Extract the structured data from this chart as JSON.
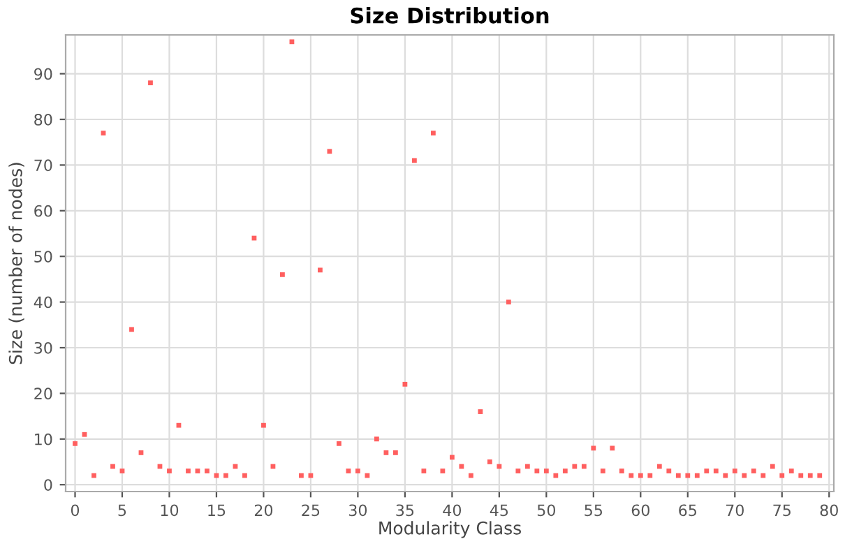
{
  "chart_data": {
    "type": "scatter",
    "title": "Size Distribution",
    "xlabel": "Modularity Class",
    "ylabel": "Size (number of nodes)",
    "x": [
      0,
      1,
      2,
      3,
      4,
      5,
      6,
      7,
      8,
      9,
      10,
      11,
      12,
      13,
      14,
      15,
      16,
      17,
      18,
      19,
      20,
      21,
      22,
      23,
      24,
      25,
      26,
      27,
      28,
      29,
      30,
      31,
      32,
      33,
      34,
      35,
      36,
      37,
      38,
      39,
      40,
      41,
      42,
      43,
      44,
      45,
      46,
      47,
      48,
      49,
      50,
      51,
      52,
      53,
      54,
      55,
      56,
      57,
      58,
      59,
      60,
      61,
      62,
      63,
      64,
      65,
      66,
      67,
      68,
      69,
      70,
      71,
      72,
      73,
      74,
      75,
      76,
      77,
      78,
      79
    ],
    "values": [
      9,
      11,
      2,
      77,
      4,
      3,
      34,
      7,
      88,
      4,
      3,
      13,
      3,
      3,
      3,
      2,
      2,
      4,
      2,
      54,
      13,
      4,
      46,
      97,
      2,
      2,
      47,
      73,
      9,
      3,
      3,
      2,
      10,
      7,
      7,
      22,
      71,
      3,
      77,
      3,
      6,
      4,
      2,
      16,
      5,
      4,
      40,
      3,
      4,
      3,
      3,
      2,
      3,
      4,
      4,
      8,
      3,
      8,
      3,
      2,
      2,
      2,
      4,
      3,
      2,
      2,
      2,
      3,
      3,
      2,
      3,
      2,
      3,
      2,
      4,
      2,
      3,
      2,
      2,
      2
    ],
    "color": "#ff5f5f",
    "marker": "square",
    "grid": true,
    "legend": false,
    "xlim": [
      -1,
      80.5
    ],
    "ylim": [
      -1.5,
      98.5
    ],
    "xticks": [
      0,
      5,
      10,
      15,
      20,
      25,
      30,
      35,
      40,
      45,
      50,
      55,
      60,
      65,
      70,
      75,
      80
    ],
    "yticks": [
      0,
      10,
      20,
      30,
      40,
      50,
      60,
      70,
      80,
      90
    ]
  }
}
